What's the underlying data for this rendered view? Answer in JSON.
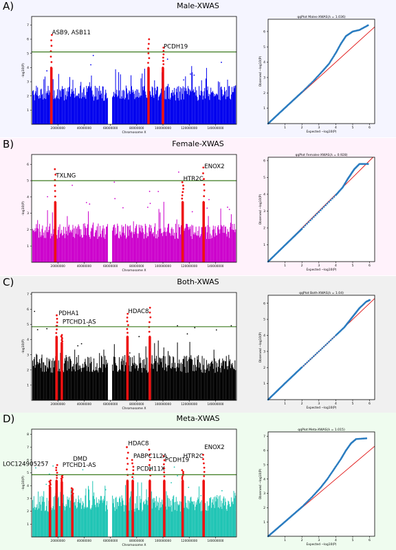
{
  "chart_data": [
    {
      "id": "A",
      "letter": "A)",
      "title": "Male-XWAS",
      "bg": "#f5f5ff",
      "color": "#0000ee",
      "hit_color": "#ee1111",
      "threshold": 5.1,
      "manhattan": {
        "type": "scatter",
        "xlabel": "Chromosome X",
        "ylabel": "-log10(P)",
        "xlim": [
          0,
          156000000
        ],
        "ylim": [
          0,
          7.6
        ],
        "xticks": [
          "20000000",
          "40000000",
          "60000000",
          "80000000",
          "100000000",
          "120000000",
          "140000000"
        ],
        "xtick_values": [
          20000000,
          40000000,
          60000000,
          80000000,
          100000000,
          120000000,
          140000000
        ],
        "yticks": [
          "1",
          "2",
          "3",
          "4",
          "5",
          "6",
          "7"
        ],
        "ytick_values": [
          1,
          2,
          3,
          4,
          5,
          6,
          7
        ],
        "base_height": 2.2,
        "gap": [
          58000000,
          61000000
        ],
        "peaks": [
          {
            "x": 15000000,
            "y": 6.3,
            "labeled": true
          },
          {
            "x": 89000000,
            "y": 6.0,
            "labeled": false
          },
          {
            "x": 100000000,
            "y": 5.4,
            "labeled": true
          }
        ],
        "annotations": [
          {
            "text": "ASB9, ASB11",
            "x": 15500000,
            "y": 6.35
          },
          {
            "text": "PCDH19",
            "x": 100500000,
            "y": 5.35
          }
        ]
      },
      "qq": {
        "type": "scatter",
        "title": "qqPlot Males-XWAS(λ = 1.036)",
        "xlabel": "Expected −log10(P)",
        "ylabel": "Observed −log10(P)",
        "xlim": [
          0,
          6.3
        ],
        "ylim": [
          0,
          6.8
        ],
        "xticks": [
          "1",
          "2",
          "3",
          "4",
          "5",
          "6"
        ],
        "xtick_values": [
          1,
          2,
          3,
          4,
          5,
          6
        ],
        "yticks": [
          "1",
          "2",
          "3",
          "4",
          "5",
          "6"
        ],
        "ytick_values": [
          1,
          2,
          3,
          4,
          5,
          6
        ],
        "lambda": 1.036,
        "points": [
          [
            0,
            0
          ],
          [
            1,
            1.03
          ],
          [
            2,
            2.05
          ],
          [
            2.7,
            2.8
          ],
          [
            3.2,
            3.4
          ],
          [
            3.6,
            3.9
          ],
          [
            4.0,
            4.6
          ],
          [
            4.3,
            5.2
          ],
          [
            4.6,
            5.7
          ],
          [
            5.0,
            6.0
          ],
          [
            5.4,
            6.1
          ],
          [
            5.9,
            6.4
          ]
        ]
      }
    },
    {
      "id": "B",
      "letter": "B)",
      "title": "Female-XWAS",
      "bg": "#fff2fb",
      "color": "#cc00cc",
      "hit_color": "#ee1111",
      "threshold": 5.0,
      "manhattan": {
        "type": "scatter",
        "xlabel": "Chromosome X",
        "ylabel": "-log10(P)",
        "xlim": [
          0,
          156000000
        ],
        "ylim": [
          0,
          6.6
        ],
        "xticks": [
          "20000000",
          "40000000",
          "60000000",
          "80000000",
          "100000000",
          "120000000",
          "140000000"
        ],
        "xtick_values": [
          20000000,
          40000000,
          60000000,
          80000000,
          100000000,
          120000000,
          140000000
        ],
        "yticks": [
          "1",
          "2",
          "3",
          "4",
          "5",
          "6"
        ],
        "ytick_values": [
          1,
          2,
          3,
          4,
          5,
          6
        ],
        "base_height": 1.9,
        "gap": [
          58000000,
          61000000
        ],
        "peaks": [
          {
            "x": 18000000,
            "y": 5.7,
            "labeled": true
          },
          {
            "x": 115000000,
            "y": 4.9,
            "labeled": true
          },
          {
            "x": 131000000,
            "y": 5.8,
            "labeled": true
          }
        ],
        "annotations": [
          {
            "text": "TXLNG",
            "x": 18500000,
            "y": 5.2
          },
          {
            "text": "HTR2C",
            "x": 115500000,
            "y": 5.0
          },
          {
            "text": "ENOX2",
            "x": 131500000,
            "y": 5.75
          }
        ]
      },
      "qq": {
        "type": "scatter",
        "title": "qqPlot Females-XWAS(λ = 0.928)",
        "xlabel": "Expected −log10(P)",
        "ylabel": "Observed −log10(P)",
        "xlim": [
          0,
          6.3
        ],
        "ylim": [
          0,
          6.2
        ],
        "xticks": [
          "1",
          "2",
          "3",
          "4",
          "5",
          "6"
        ],
        "xtick_values": [
          1,
          2,
          3,
          4,
          5,
          6
        ],
        "yticks": [
          "1",
          "2",
          "3",
          "4",
          "5",
          "6"
        ],
        "ytick_values": [
          1,
          2,
          3,
          4,
          5,
          6
        ],
        "lambda": 0.928,
        "points": [
          [
            0,
            0
          ],
          [
            1,
            0.98
          ],
          [
            2,
            1.95
          ],
          [
            3,
            2.95
          ],
          [
            4,
            3.95
          ],
          [
            4.4,
            4.4
          ],
          [
            4.7,
            4.9
          ],
          [
            4.9,
            5.2
          ],
          [
            5.1,
            5.5
          ],
          [
            5.4,
            5.8
          ],
          [
            5.9,
            5.8
          ]
        ]
      }
    },
    {
      "id": "C",
      "letter": "C)",
      "title": "Both-XWAS",
      "bg": "#f0f0f0",
      "color": "#000000",
      "hit_color": "#ee1111",
      "threshold": 4.85,
      "manhattan": {
        "type": "scatter",
        "xlabel": "Chromosome X",
        "ylabel": "-log10(P)",
        "xlim": [
          0,
          156000000
        ],
        "ylim": [
          0,
          7.1
        ],
        "xticks": [
          "20000000",
          "40000000",
          "60000000",
          "80000000",
          "100000000",
          "120000000",
          "140000000"
        ],
        "xtick_values": [
          20000000,
          40000000,
          60000000,
          80000000,
          100000000,
          120000000,
          140000000
        ],
        "yticks": [
          "1",
          "2",
          "3",
          "4",
          "5",
          "6",
          "7"
        ],
        "ytick_values": [
          1,
          2,
          3,
          4,
          5,
          6,
          7
        ],
        "base_height": 2.4,
        "gap": [
          58000000,
          61000000
        ],
        "peaks": [
          {
            "x": 19000000,
            "y": 5.6,
            "labeled": true
          },
          {
            "x": 23000000,
            "y": 4.3,
            "labeled": true
          },
          {
            "x": 73000000,
            "y": 5.7,
            "labeled": true
          },
          {
            "x": 90000000,
            "y": 6.1,
            "labeled": false
          }
        ],
        "annotations": [
          {
            "text": "PDHA1",
            "x": 20500000,
            "y": 5.6
          },
          {
            "text": "PTCHD1-AS",
            "x": 23500000,
            "y": 5.05
          },
          {
            "text": "HDAC8",
            "x": 73500000,
            "y": 5.75
          }
        ]
      },
      "qq": {
        "type": "scatter",
        "title": "qqPlot Both-XWAS(λ = 1.04)",
        "xlabel": "Expected −log10(P)",
        "ylabel": "Observed −log10(P)",
        "xlim": [
          0,
          6.3
        ],
        "ylim": [
          0,
          6.5
        ],
        "xticks": [
          "1",
          "2",
          "3",
          "4",
          "5",
          "6"
        ],
        "xtick_values": [
          1,
          2,
          3,
          4,
          5,
          6
        ],
        "yticks": [
          "1",
          "2",
          "3",
          "4",
          "5",
          "6"
        ],
        "ytick_values": [
          1,
          2,
          3,
          4,
          5,
          6
        ],
        "lambda": 1.04,
        "points": [
          [
            0,
            0
          ],
          [
            1,
            1.02
          ],
          [
            2,
            2.02
          ],
          [
            3,
            3.0
          ],
          [
            4,
            4.0
          ],
          [
            4.5,
            4.5
          ],
          [
            4.8,
            4.9
          ],
          [
            5.1,
            5.3
          ],
          [
            5.4,
            5.7
          ],
          [
            5.8,
            6.1
          ],
          [
            6.0,
            6.2
          ]
        ]
      }
    },
    {
      "id": "D",
      "letter": "D)",
      "title": "Meta-XWAS",
      "bg": "#effcef",
      "color": "#1ec4b4",
      "hit_color": "#ee1111",
      "threshold": 4.85,
      "manhattan": {
        "type": "scatter",
        "xlabel": "Chromosome X",
        "ylabel": "-log10(P)",
        "xlim": [
          0,
          156000000
        ],
        "ylim": [
          0,
          8.4
        ],
        "xticks": [
          "20000000",
          "40000000",
          "60000000",
          "80000000",
          "100000000",
          "120000000",
          "140000000"
        ],
        "xtick_values": [
          20000000,
          40000000,
          60000000,
          80000000,
          100000000,
          120000000,
          140000000
        ],
        "yticks": [
          "1",
          "2",
          "3",
          "4",
          "5",
          "6",
          "7",
          "8"
        ],
        "ytick_values": [
          1,
          2,
          3,
          4,
          5,
          6,
          7,
          8
        ],
        "base_height": 2.6,
        "gap": [
          58000000,
          61000000
        ],
        "peaks": [
          {
            "x": 14000000,
            "y": 4.4,
            "labeled": true
          },
          {
            "x": 19000000,
            "y": 5.6,
            "labeled": true
          },
          {
            "x": 23000000,
            "y": 4.8,
            "labeled": true
          },
          {
            "x": 31000000,
            "y": 3.8,
            "labeled": false
          },
          {
            "x": 73000000,
            "y": 7.0,
            "labeled": true
          },
          {
            "x": 77000000,
            "y": 6.0,
            "labeled": true
          },
          {
            "x": 90000000,
            "y": 6.8,
            "labeled": true
          },
          {
            "x": 101000000,
            "y": 6.3,
            "labeled": true
          },
          {
            "x": 115000000,
            "y": 5.2,
            "labeled": true
          },
          {
            "x": 131000000,
            "y": 6.4,
            "labeled": true
          }
        ],
        "annotations": [
          {
            "text": "LOC124905257",
            "x": -22000000,
            "y": 5.55
          },
          {
            "text": "DMD",
            "x": 31500000,
            "y": 5.95
          },
          {
            "text": "PTCHD1-AS",
            "x": 23500000,
            "y": 5.45
          },
          {
            "text": "HDAC8",
            "x": 73500000,
            "y": 7.15
          },
          {
            "text": "PABPC1L2A",
            "x": 77500000,
            "y": 6.15
          },
          {
            "text": "PCDH11X",
            "x": 80000000,
            "y": 5.15
          },
          {
            "text": "PCDH19",
            "x": 101500000,
            "y": 5.85
          },
          {
            "text": "HTR2C",
            "x": 115500000,
            "y": 6.15
          },
          {
            "text": "ENOX2",
            "x": 131500000,
            "y": 6.85
          }
        ]
      },
      "qq": {
        "type": "scatter",
        "title": "qqPlot Meta-XWAS(λ = 1.015)",
        "xlabel": "Expected −log10(P)",
        "ylabel": "Observed −log10(P)",
        "xlim": [
          0,
          6.3
        ],
        "ylim": [
          0,
          7.3
        ],
        "xticks": [
          "1",
          "2",
          "3",
          "4",
          "5",
          "6"
        ],
        "xtick_values": [
          1,
          2,
          3,
          4,
          5,
          6
        ],
        "yticks": [
          "1",
          "2",
          "3",
          "4",
          "5",
          "6",
          "7"
        ],
        "ytick_values": [
          1,
          2,
          3,
          4,
          5,
          6,
          7
        ],
        "lambda": 1.015,
        "points": [
          [
            0,
            0
          ],
          [
            1,
            1.02
          ],
          [
            2,
            2.05
          ],
          [
            2.6,
            2.75
          ],
          [
            3.1,
            3.4
          ],
          [
            3.5,
            4.0
          ],
          [
            3.9,
            4.7
          ],
          [
            4.3,
            5.4
          ],
          [
            4.6,
            6.0
          ],
          [
            4.9,
            6.5
          ],
          [
            5.2,
            6.8
          ],
          [
            5.8,
            6.85
          ]
        ]
      }
    }
  ]
}
